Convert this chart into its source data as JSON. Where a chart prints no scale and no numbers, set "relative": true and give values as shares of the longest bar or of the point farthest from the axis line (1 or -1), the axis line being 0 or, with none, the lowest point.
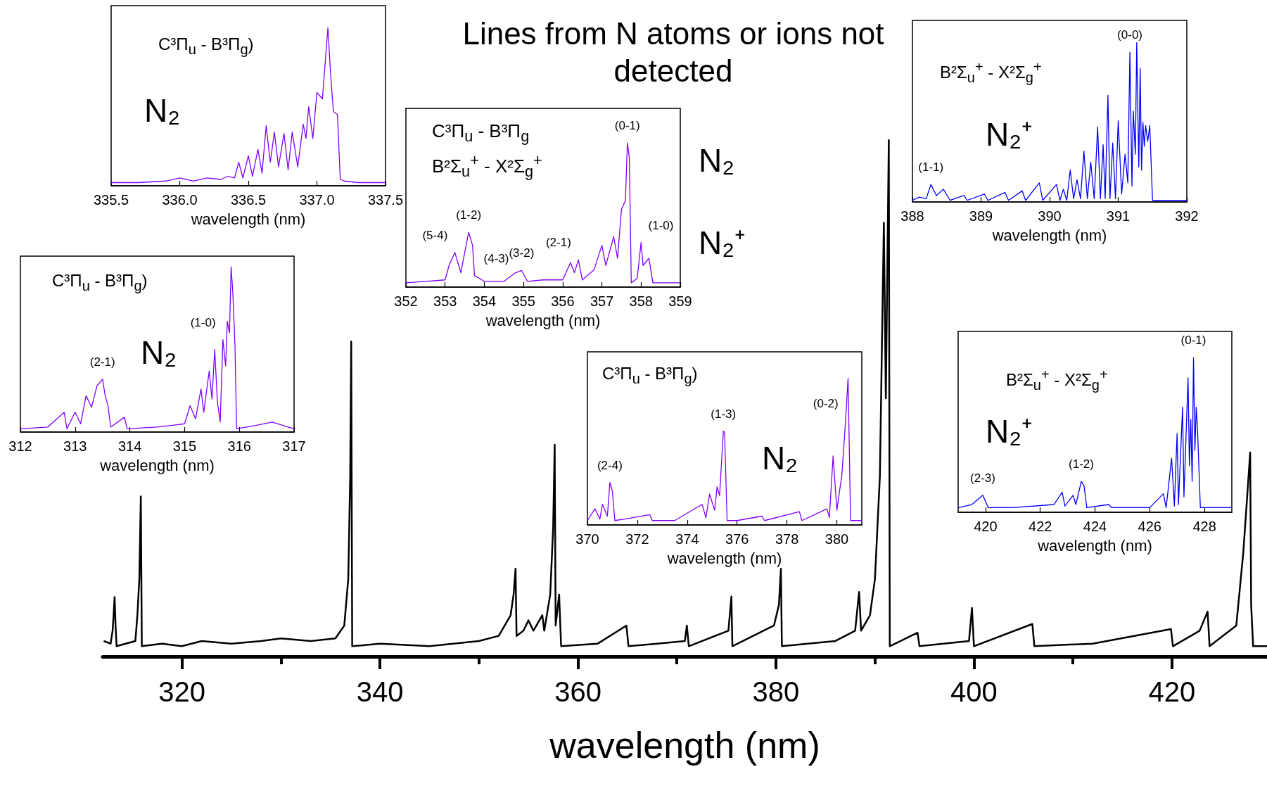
{
  "chart_data": [
    {
      "type": "line",
      "relative": true,
      "title": "Lines from N atoms or ions not detected",
      "xlabel": "wavelength (nm)",
      "xlim": [
        312,
        429.6
      ],
      "xticks": [
        {
          "value": 320,
          "label": "320"
        },
        {
          "value": 330,
          "label": null
        },
        {
          "value": 340,
          "label": "340"
        },
        {
          "value": 350,
          "label": null
        },
        {
          "value": 360,
          "label": "360"
        },
        {
          "value": 370,
          "label": null
        },
        {
          "value": 380,
          "label": "380"
        },
        {
          "value": 390,
          "label": null
        },
        {
          "value": 400,
          "label": "400"
        },
        {
          "value": 410,
          "label": null
        },
        {
          "value": 420,
          "label": "420"
        }
      ],
      "color": "#000000",
      "x": [
        312.1,
        312.8,
        313.0,
        313.1,
        313.2,
        313.3,
        313.4,
        315.3,
        315.5,
        315.7,
        315.85,
        315.95,
        318,
        320,
        322,
        325,
        328,
        330,
        333,
        335.5,
        336.4,
        336.8,
        337.0,
        337.1,
        337.2,
        340,
        345,
        350,
        352,
        353.2,
        353.5,
        353.7,
        353.8,
        354.5,
        355,
        355.5,
        356.4,
        356.6,
        357.2,
        357.5,
        357.65,
        357.75,
        358.1,
        358.3,
        362,
        364.9,
        365.1,
        368,
        370.8,
        371,
        371.2,
        375.2,
        375.5,
        375.6,
        379.8,
        380.3,
        380.5,
        380.6,
        386,
        388.0,
        388.4,
        388.6,
        389.5,
        390.0,
        390.5,
        390.9,
        391.1,
        391.4,
        391.5,
        394.3,
        394.5,
        399.5,
        399.8,
        400,
        405.9,
        406.1,
        412,
        419.9,
        420.1,
        422.8,
        423.6,
        423.8,
        426.5,
        427.2,
        427.6,
        427.9,
        428.0,
        428.2,
        429.6
      ],
      "values": [
        0.03,
        0.025,
        0.05,
        0.08,
        0.115,
        0.06,
        0.02,
        0.03,
        0.08,
        0.15,
        0.31,
        0.02,
        0.025,
        0.02,
        0.03,
        0.025,
        0.03,
        0.035,
        0.03,
        0.035,
        0.06,
        0.15,
        0.35,
        0.61,
        0.02,
        0.025,
        0.02,
        0.03,
        0.04,
        0.08,
        0.12,
        0.17,
        0.04,
        0.05,
        0.07,
        0.05,
        0.08,
        0.05,
        0.12,
        0.25,
        0.41,
        0.06,
        0.12,
        0.02,
        0.025,
        0.06,
        0.02,
        0.025,
        0.03,
        0.06,
        0.02,
        0.05,
        0.116,
        0.02,
        0.06,
        0.1,
        0.17,
        0.02,
        0.03,
        0.05,
        0.125,
        0.05,
        0.08,
        0.15,
        0.35,
        0.84,
        0.5,
        1,
        0.02,
        0.046,
        0.02,
        0.03,
        0.094,
        0.02,
        0.063,
        0.02,
        0.025,
        0.053,
        0.02,
        0.05,
        0.087,
        0.02,
        0.06,
        0.2,
        0.31,
        0.395,
        0.1,
        0.02,
        0.02
      ]
    },
    {
      "type": "line",
      "relative": true,
      "xlabel": "wavelength (nm)",
      "xlim": [
        335.5,
        337.5
      ],
      "xticks": [
        335.5,
        {
          "value": 336,
          "label": "336.0"
        },
        336.5,
        {
          "value": 337,
          "label": "337.0"
        },
        337.5
      ],
      "color": "#8000ff",
      "annotations": [
        "C³Π$_{u}$ - B³Π$_{g}$)",
        "N₂"
      ],
      "x": [
        335.5,
        335.7,
        335.9,
        336.0,
        336.1,
        336.2,
        336.3,
        336.35,
        336.4,
        336.43,
        336.46,
        336.5,
        336.53,
        336.57,
        336.6,
        336.63,
        336.66,
        336.69,
        336.72,
        336.76,
        336.79,
        336.82,
        336.86,
        336.9,
        336.92,
        336.94,
        336.97,
        337.0,
        337.04,
        337.08,
        337.1,
        337.12,
        337.15,
        337.17,
        337.2,
        337.3,
        337.5
      ],
      "values": [
        0.02,
        0.02,
        0.03,
        0.05,
        0.03,
        0.05,
        0.04,
        0.06,
        0.05,
        0.15,
        0.05,
        0.19,
        0.06,
        0.23,
        0.08,
        0.38,
        0.15,
        0.34,
        0.12,
        0.33,
        0.1,
        0.34,
        0.12,
        0.39,
        0.3,
        0.5,
        0.3,
        0.59,
        0.55,
        1,
        0.7,
        0.47,
        0.45,
        0.04,
        0.03,
        0.02,
        0.02
      ]
    },
    {
      "type": "line",
      "relative": true,
      "xlabel": "wavelength (nm)",
      "xlim": [
        352,
        359
      ],
      "xticks": [
        352,
        353,
        354,
        355,
        356,
        357,
        358,
        359
      ],
      "color": "#8000ff",
      "annotations": [
        "C³Π$_{u}$ - B³Π$_{g}$",
        "B²Σ$_{u}$$^{+}$ - X²Σ$_{g}$$^{+}$",
        "N₂",
        "N₂⁺",
        {
          "text": "(5-4)",
          "x": 353.25,
          "y": 0.24
        },
        {
          "text": "(1-2)",
          "x": 353.6,
          "y": 0.38
        },
        {
          "text": "(4-3)",
          "x": 353.8,
          "y": 0.08
        },
        {
          "text": "(3-2)",
          "x": 354.95,
          "y": 0.115
        },
        {
          "text": "(2-1)",
          "x": 356.4,
          "y": 0.19
        },
        {
          "text": "(0-1)",
          "x": 357.65,
          "y": 1
        },
        {
          "text": "(1-0)",
          "x": 358.0,
          "y": 0.31
        }
      ],
      "x": [
        352,
        352.5,
        353,
        353.1,
        353.25,
        353.4,
        353.6,
        353.7,
        353.75,
        354,
        354.5,
        354.8,
        354.95,
        355.1,
        355.5,
        356,
        356.2,
        356.3,
        356.4,
        356.5,
        356.8,
        357,
        357.1,
        357.3,
        357.4,
        357.5,
        357.6,
        357.65,
        357.7,
        357.75,
        357.9,
        358,
        358.05,
        358.2,
        358.3,
        359
      ],
      "values": [
        0.03,
        0.04,
        0.05,
        0.15,
        0.24,
        0.1,
        0.38,
        0.29,
        0.08,
        0.04,
        0.04,
        0.1,
        0.115,
        0.04,
        0.05,
        0.05,
        0.17,
        0.1,
        0.19,
        0.05,
        0.12,
        0.29,
        0.15,
        0.35,
        0.2,
        0.54,
        0.6,
        1,
        0.9,
        0.03,
        0.06,
        0.31,
        0.15,
        0.2,
        0.03,
        0.03
      ]
    },
    {
      "type": "line",
      "relative": true,
      "xlabel": "wavelength (nm)",
      "xlim": [
        388,
        392
      ],
      "xticks": [
        388,
        389,
        390,
        391,
        392
      ],
      "color": "#0000ff",
      "annotations": [
        "B²Σ$_{u}$$^{+}$ - X²Σ$_{g}$$^{+}$",
        "N₂⁺",
        {
          "text": "(1-1)",
          "x": 388.27,
          "y": 0.11
        },
        {
          "text": "(0-0)",
          "x": 391.17,
          "y": 0.94
        }
      ],
      "x": [
        388,
        388.1,
        388.2,
        388.27,
        388.35,
        388.45,
        388.55,
        388.75,
        388.8,
        389.05,
        389.1,
        389.35,
        389.4,
        389.6,
        389.65,
        389.85,
        389.9,
        390.1,
        390.15,
        390.2,
        390.25,
        390.3,
        390.35,
        390.4,
        390.45,
        390.5,
        390.55,
        390.6,
        390.65,
        390.7,
        390.74,
        390.78,
        390.81,
        390.85,
        390.88,
        390.92,
        390.96,
        391.0,
        391.05,
        391.1,
        391.14,
        391.17,
        391.2,
        391.22,
        391.25,
        391.27,
        391.3,
        391.32,
        391.34,
        391.36,
        391.38,
        391.4,
        391.43,
        391.46,
        391.5,
        391.6,
        392
      ],
      "values": [
        0.01,
        0.03,
        0.02,
        0.11,
        0.04,
        0.08,
        0.01,
        0.04,
        0.01,
        0.05,
        0.01,
        0.06,
        0.01,
        0.07,
        0.01,
        0.12,
        0.01,
        0.11,
        0.01,
        0.08,
        0.01,
        0.2,
        0.02,
        0.14,
        0.02,
        0.32,
        0.02,
        0.25,
        0.02,
        0.47,
        0.02,
        0.36,
        0.02,
        0.67,
        0.02,
        0.37,
        0.02,
        0.51,
        0.05,
        0.3,
        0.12,
        0.94,
        0.1,
        0.57,
        0.3,
        1,
        0.22,
        0.84,
        0.2,
        0.5,
        0.35,
        0.48,
        0.38,
        0.48,
        0.01,
        0.01,
        0.01
      ]
    },
    {
      "type": "line",
      "relative": true,
      "xlabel": "wavelength (nm)",
      "xlim": [
        312,
        317
      ],
      "xticks": [
        312,
        313,
        314,
        315,
        316,
        317
      ],
      "color": "#8000ff",
      "annotations": [
        "C³Π$_{u}$ - B³Π$_{g}$)",
        "N₂",
        {
          "text": "(2-1)",
          "x": 313.5,
          "y": 0.32
        },
        {
          "text": "(1-0)",
          "x": 315.7,
          "y": 0.56
        }
      ],
      "x": [
        312,
        312.5,
        312.8,
        312.85,
        313,
        313.1,
        313.2,
        313.3,
        313.4,
        313.5,
        313.55,
        313.6,
        313.65,
        313.9,
        313.95,
        314.5,
        315,
        315.1,
        315.2,
        315.3,
        315.35,
        315.45,
        315.5,
        315.55,
        315.6,
        315.65,
        315.7,
        315.75,
        315.78,
        315.82,
        315.85,
        315.88,
        315.92,
        315.95,
        316.3,
        316.6,
        317
      ],
      "values": [
        0.02,
        0.03,
        0.12,
        0.02,
        0.12,
        0.05,
        0.22,
        0.15,
        0.28,
        0.32,
        0.22,
        0.16,
        0.03,
        0.09,
        0.02,
        0.03,
        0.05,
        0.16,
        0.08,
        0.26,
        0.12,
        0.37,
        0.2,
        0.5,
        0.18,
        0.06,
        0.56,
        0.4,
        0.67,
        0.6,
        1,
        0.85,
        0.53,
        0.02,
        0.04,
        0.06,
        0.02
      ]
    },
    {
      "type": "line",
      "relative": true,
      "xlabel": "wavelength (nm)",
      "xlim": [
        370,
        381
      ],
      "xticks": [
        370,
        372,
        374,
        376,
        378,
        380
      ],
      "color": "#8000ff",
      "annotations": [
        "C³Π$_{u}$ - B³Π$_{g}$)",
        "N₂",
        {
          "text": "(2-4)",
          "x": 370.9,
          "y": 0.29
        },
        {
          "text": "(1-3)",
          "x": 375.45,
          "y": 0.64
        },
        {
          "text": "(0-2)",
          "x": 380.35,
          "y": 0.71
        }
      ],
      "x": [
        370,
        370.3,
        370.5,
        370.6,
        370.8,
        370.9,
        371,
        371.1,
        371.5,
        372.5,
        372.6,
        373.5,
        374.6,
        374.75,
        374.9,
        375.1,
        375.2,
        375.3,
        375.45,
        375.5,
        375.6,
        376,
        377,
        377.1,
        378.5,
        378.6,
        379.6,
        379.7,
        379.85,
        380,
        380.2,
        380.35,
        380.45,
        380.55,
        381
      ],
      "values": [
        0.03,
        0.11,
        0.04,
        0.14,
        0.06,
        0.29,
        0.23,
        0.03,
        0.04,
        0.07,
        0.03,
        0.03,
        0.14,
        0.05,
        0.21,
        0.1,
        0.26,
        0.2,
        0.64,
        0.63,
        0.03,
        0.03,
        0.06,
        0.03,
        0.09,
        0.03,
        0.11,
        0.05,
        0.47,
        0.1,
        0.34,
        0.71,
        1,
        0.03,
        0.03
      ]
    },
    {
      "type": "line",
      "relative": true,
      "xlabel": "wavelength (nm)",
      "xlim": [
        419,
        429
      ],
      "xticks": [
        420,
        422,
        424,
        426,
        428
      ],
      "color": "#0000ff",
      "annotations": [
        "B²Σ$_{u}$$^{+}$ - X²Σ$_{g}$$^{+}$",
        "N₂⁺",
        {
          "text": "(2-3)",
          "x": 419.9,
          "y": 0.11
        },
        {
          "text": "(1-2)",
          "x": 423.5,
          "y": 0.2
        },
        {
          "text": "(0-1)",
          "x": 427.6,
          "y": 1
        }
      ],
      "x": [
        419,
        419.5,
        419.9,
        420.1,
        421,
        422.5,
        422.8,
        422.9,
        423.2,
        423.3,
        423.5,
        423.6,
        423.7,
        424.5,
        424.6,
        426,
        426.5,
        426.6,
        426.8,
        426.9,
        427.0,
        427.05,
        427.2,
        427.25,
        427.4,
        427.45,
        427.5,
        427.55,
        427.6,
        427.65,
        427.7,
        427.75,
        427.85,
        428.5,
        429
      ],
      "values": [
        0.03,
        0.05,
        0.11,
        0.03,
        0.03,
        0.05,
        0.13,
        0.04,
        0.11,
        0.05,
        0.2,
        0.17,
        0.03,
        0.05,
        0.03,
        0.03,
        0.12,
        0.03,
        0.35,
        0.04,
        0.51,
        0.05,
        0.68,
        0.1,
        0.87,
        0.3,
        0.6,
        0.2,
        1,
        0.4,
        0.68,
        0.52,
        0.03,
        0.03,
        0.03
      ]
    }
  ]
}
